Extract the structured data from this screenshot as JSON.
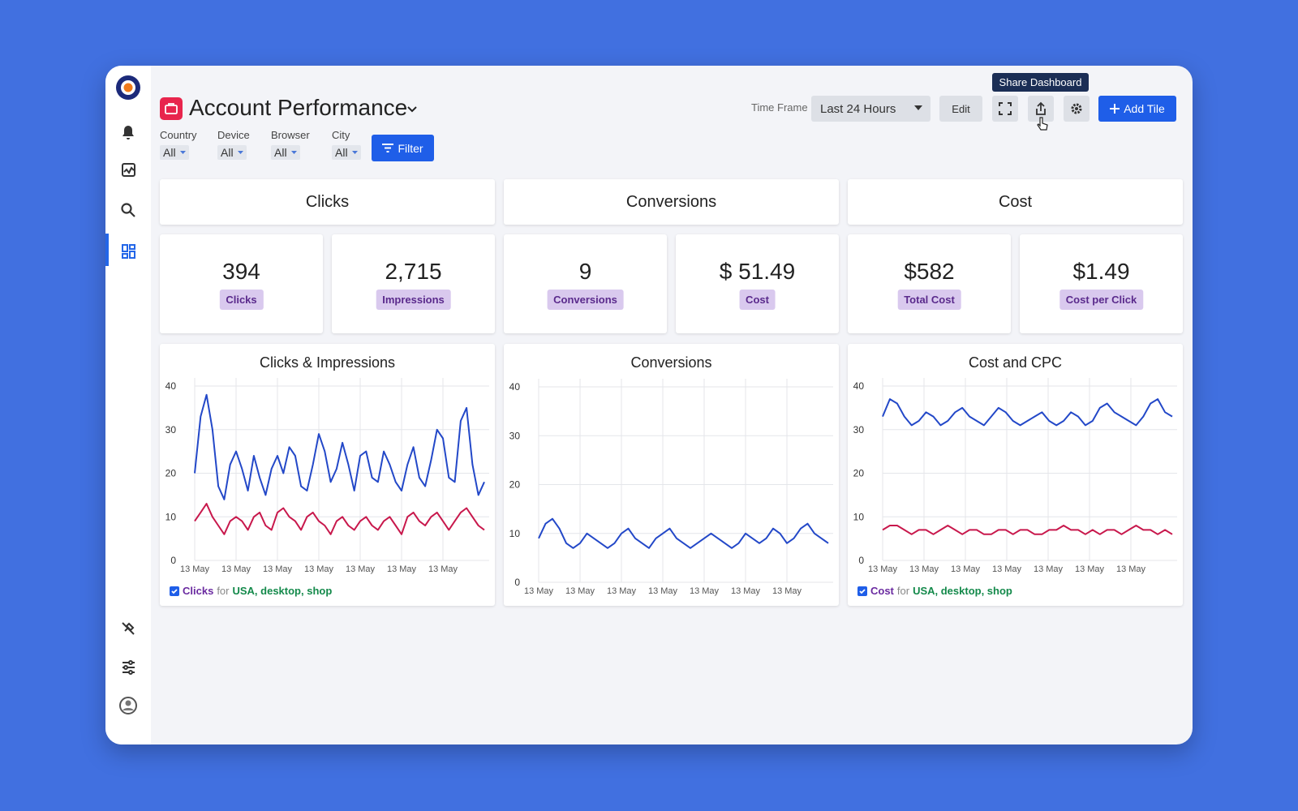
{
  "tooltip": "Share Dashboard",
  "header": {
    "title": "Account Performance",
    "time_frame_label": "Time Frame",
    "time_frame": "Last 24 Hours",
    "edit": "Edit",
    "add_tile": "Add Tile"
  },
  "filters": [
    {
      "label": "Country",
      "value": "All"
    },
    {
      "label": "Device",
      "value": "All"
    },
    {
      "label": "Browser",
      "value": "All"
    },
    {
      "label": "City",
      "value": "All"
    }
  ],
  "filter_button": "Filter",
  "sections": [
    "Clicks",
    "Conversions",
    "Cost"
  ],
  "kpis": [
    {
      "value": "394",
      "label": "Clicks"
    },
    {
      "value": "2,715",
      "label": "Impressions"
    },
    {
      "value": "9",
      "label": "Conversions"
    },
    {
      "value": "$ 51.49",
      "label": "Cost"
    },
    {
      "value": "$582",
      "label": "Total Cost"
    },
    {
      "value": "$1.49",
      "label": "Cost per Click"
    }
  ],
  "charts": [
    {
      "type": "line",
      "title": "Clicks & Impressions",
      "ylim": [
        0,
        40
      ],
      "yticks": [
        0,
        10,
        20,
        30,
        40
      ],
      "x_labels": [
        "13 May",
        "13 May",
        "13 May",
        "13 May",
        "13 May",
        "13 May",
        "13 May"
      ],
      "series": [
        {
          "color": "#2348c8",
          "values": [
            20,
            33,
            38,
            30,
            17,
            14,
            22,
            25,
            21,
            16,
            24,
            19,
            15,
            21,
            24,
            20,
            26,
            24,
            17,
            16,
            22,
            29,
            25,
            18,
            21,
            27,
            22,
            16,
            24,
            25,
            19,
            18,
            25,
            22,
            18,
            16,
            22,
            26,
            19,
            17,
            23,
            30,
            28,
            19,
            18,
            32,
            35,
            22,
            15,
            18
          ]
        },
        {
          "color": "#c8184c",
          "values": [
            9,
            11,
            13,
            10,
            8,
            6,
            9,
            10,
            9,
            7,
            10,
            11,
            8,
            7,
            11,
            12,
            10,
            9,
            7,
            10,
            11,
            9,
            8,
            6,
            9,
            10,
            8,
            7,
            9,
            10,
            8,
            7,
            9,
            10,
            8,
            6,
            10,
            11,
            9,
            8,
            10,
            11,
            9,
            7,
            9,
            11,
            12,
            10,
            8,
            7
          ]
        }
      ],
      "legend": {
        "metric": "Clicks",
        "for": "for",
        "filters": "USA, desktop, shop"
      }
    },
    {
      "type": "line",
      "title": "Conversions",
      "ylim": [
        0,
        40
      ],
      "yticks": [
        0,
        10,
        20,
        30,
        40
      ],
      "x_labels": [
        "13 May",
        "13 May",
        "13 May",
        "13 May",
        "13 May",
        "13 May",
        "13 May"
      ],
      "series": [
        {
          "color": "#2348c8",
          "values": [
            9,
            12,
            13,
            11,
            8,
            7,
            8,
            10,
            9,
            8,
            7,
            8,
            10,
            11,
            9,
            8,
            7,
            9,
            10,
            11,
            9,
            8,
            7,
            8,
            9,
            10,
            9,
            8,
            7,
            8,
            10,
            9,
            8,
            9,
            11,
            10,
            8,
            9,
            11,
            12,
            10,
            9,
            8
          ]
        }
      ]
    },
    {
      "type": "line",
      "title": "Cost and CPC",
      "ylim": [
        0,
        40
      ],
      "yticks": [
        0,
        10,
        20,
        30,
        40
      ],
      "x_labels": [
        "13 May",
        "13 May",
        "13 May",
        "13 May",
        "13 May",
        "13 May",
        "13 May"
      ],
      "series": [
        {
          "color": "#2348c8",
          "values": [
            33,
            37,
            36,
            33,
            31,
            32,
            34,
            33,
            31,
            32,
            34,
            35,
            33,
            32,
            31,
            33,
            35,
            34,
            32,
            31,
            32,
            33,
            34,
            32,
            31,
            32,
            34,
            33,
            31,
            32,
            35,
            36,
            34,
            33,
            32,
            31,
            33,
            36,
            37,
            34,
            33
          ]
        },
        {
          "color": "#c8184c",
          "values": [
            7,
            8,
            8,
            7,
            6,
            7,
            7,
            6,
            7,
            8,
            7,
            6,
            7,
            7,
            6,
            6,
            7,
            7,
            6,
            7,
            7,
            6,
            6,
            7,
            7,
            8,
            7,
            7,
            6,
            7,
            6,
            7,
            7,
            6,
            7,
            8,
            7,
            7,
            6,
            7,
            6
          ]
        }
      ],
      "legend": {
        "metric": "Cost",
        "for": "for",
        "filters": "USA, desktop, shop"
      }
    }
  ]
}
